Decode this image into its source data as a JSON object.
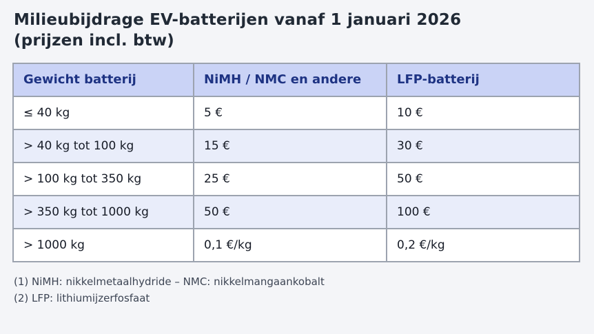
{
  "title": {
    "line1": "Milieubijdrage EV-batterijen vanaf 1 januari 2026",
    "line2": "(prijzen incl. btw)"
  },
  "table": {
    "columns": [
      "Gewicht batterij",
      "NiMH / NMC en andere",
      "LFP-batterij"
    ],
    "rows": [
      [
        "≤ 40 kg",
        "5 €",
        "10 €"
      ],
      [
        "> 40 kg tot 100 kg",
        "15 €",
        "30 €"
      ],
      [
        "> 100 kg tot 350 kg",
        "25 €",
        "50 €"
      ],
      [
        "> 350 kg tot 1000 kg",
        "50 €",
        "100 €"
      ],
      [
        "> 1000 kg",
        "0,1 €/kg",
        "0,2 €/kg"
      ]
    ]
  },
  "footnotes": [
    "(1) NiMH: nikkelmetaalhydride – NMC: nikkelmangaankobalt",
    "(2) LFP: lithiumijzerfosfaat"
  ],
  "colors": {
    "page_bg": "#f4f5f8",
    "title_text": "#212a36",
    "table_border": "#9ca3af",
    "header_bg": "#cad3f6",
    "header_text": "#1e3383",
    "row_bg": "#ffffff",
    "row_alt_bg": "#e9edfa",
    "body_text": "#161b26",
    "footnote_text": "#3d4554"
  }
}
